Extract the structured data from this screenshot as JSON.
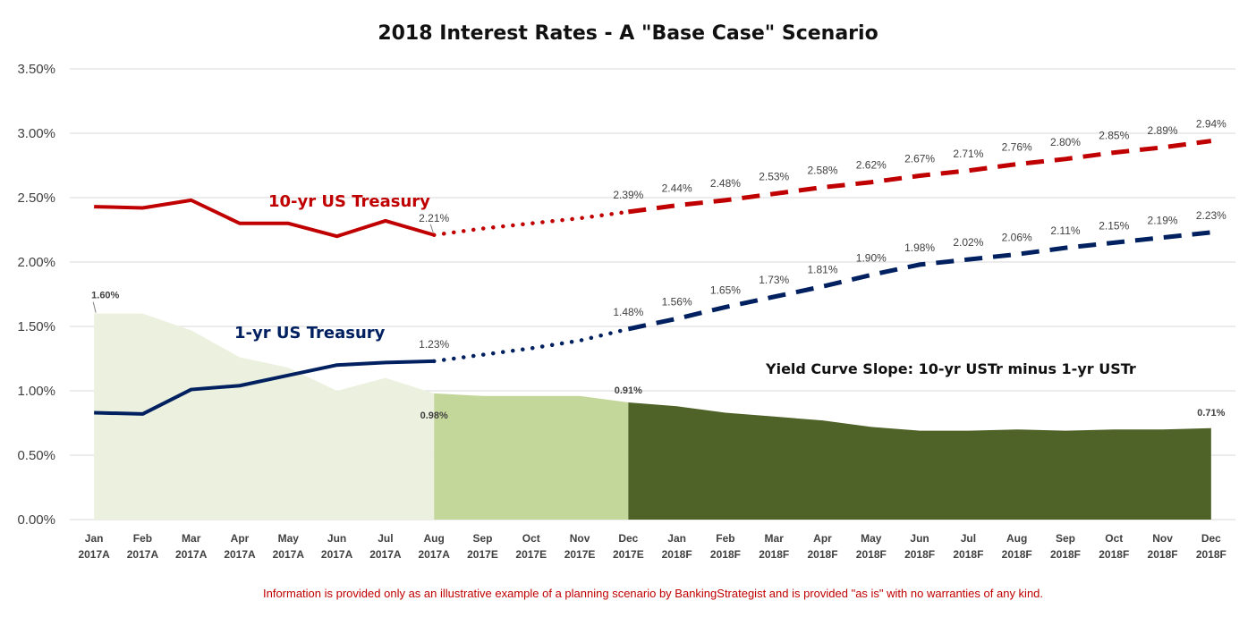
{
  "chart_data": {
    "type": "line",
    "title": "2018 Interest Rates - A \"Base Case\" Scenario",
    "y_tick_labels": [
      "0.00%",
      "0.50%",
      "1.00%",
      "1.50%",
      "2.00%",
      "2.50%",
      "3.00%",
      "3.50%"
    ],
    "ylim": [
      0,
      3.5
    ],
    "y_step": 0.5,
    "categories": [
      [
        "Jan",
        "2017A"
      ],
      [
        "Feb",
        "2017A"
      ],
      [
        "Mar",
        "2017A"
      ],
      [
        "Apr",
        "2017A"
      ],
      [
        "May",
        "2017A"
      ],
      [
        "Jun",
        "2017A"
      ],
      [
        "Jul",
        "2017A"
      ],
      [
        "Aug",
        "2017A"
      ],
      [
        "Sep",
        "2017E"
      ],
      [
        "Oct",
        "2017E"
      ],
      [
        "Nov",
        "2017E"
      ],
      [
        "Dec",
        "2017E"
      ],
      [
        "Jan",
        "2018F"
      ],
      [
        "Feb",
        "2018F"
      ],
      [
        "Mar",
        "2018F"
      ],
      [
        "Apr",
        "2018F"
      ],
      [
        "May",
        "2018F"
      ],
      [
        "Jun",
        "2018F"
      ],
      [
        "Jul",
        "2018F"
      ],
      [
        "Aug",
        "2018F"
      ],
      [
        "Sep",
        "2018F"
      ],
      [
        "Oct",
        "2018F"
      ],
      [
        "Nov",
        "2018F"
      ],
      [
        "Dec",
        "2018F"
      ]
    ],
    "segments": {
      "actual_end_index": 7,
      "estimate_end_index": 11
    },
    "series": [
      {
        "name": "10-yr US Treasury",
        "color": "#c00000",
        "values": [
          2.43,
          2.42,
          2.48,
          2.3,
          2.3,
          2.2,
          2.32,
          2.21,
          2.26,
          2.3,
          2.34,
          2.39,
          2.44,
          2.48,
          2.53,
          2.58,
          2.62,
          2.67,
          2.71,
          2.76,
          2.8,
          2.85,
          2.89,
          2.94
        ],
        "labels": [
          null,
          null,
          null,
          null,
          null,
          null,
          null,
          "2.21%",
          null,
          null,
          null,
          "2.39%",
          "2.44%",
          "2.48%",
          "2.53%",
          "2.58%",
          "2.62%",
          "2.67%",
          "2.71%",
          "2.76%",
          "2.80%",
          "2.85%",
          "2.89%",
          "2.94%"
        ]
      },
      {
        "name": "1-yr US Treasury",
        "color": "#002060",
        "values": [
          0.83,
          0.82,
          1.01,
          1.04,
          1.12,
          1.2,
          1.22,
          1.23,
          1.28,
          1.33,
          1.39,
          1.48,
          1.56,
          1.65,
          1.73,
          1.81,
          1.9,
          1.98,
          2.02,
          2.06,
          2.11,
          2.15,
          2.19,
          2.23
        ],
        "labels": [
          null,
          null,
          null,
          null,
          null,
          null,
          null,
          "1.23%",
          null,
          null,
          null,
          "1.48%",
          "1.56%",
          "1.65%",
          "1.73%",
          "1.81%",
          "1.90%",
          "1.98%",
          "2.02%",
          "2.06%",
          "2.11%",
          "2.15%",
          "2.19%",
          "2.23%"
        ]
      }
    ],
    "slope_area": {
      "name": "Yield Curve Slope: 10-yr USTr minus 1-yr USTr",
      "values": [
        1.6,
        1.6,
        1.47,
        1.26,
        1.18,
        1.0,
        1.1,
        0.98,
        0.96,
        0.96,
        0.96,
        0.91,
        0.88,
        0.83,
        0.8,
        0.77,
        0.72,
        0.69,
        0.69,
        0.7,
        0.69,
        0.7,
        0.7,
        0.71
      ],
      "colors": {
        "actual": "#ebf1de",
        "estimate": "#c4d79b",
        "forecast": "#4f6228"
      },
      "labels": [
        {
          "index": 0,
          "text": "1.60%"
        },
        {
          "index": 7,
          "text": "0.98%"
        },
        {
          "index": 11,
          "text": "0.91%"
        },
        {
          "index": 23,
          "text": "0.71%"
        }
      ]
    },
    "disclaimer": "Information is provided only as an illustrative example of a planning scenario by BankingStrategist and is provided \"as is\" with no warranties of any kind."
  }
}
